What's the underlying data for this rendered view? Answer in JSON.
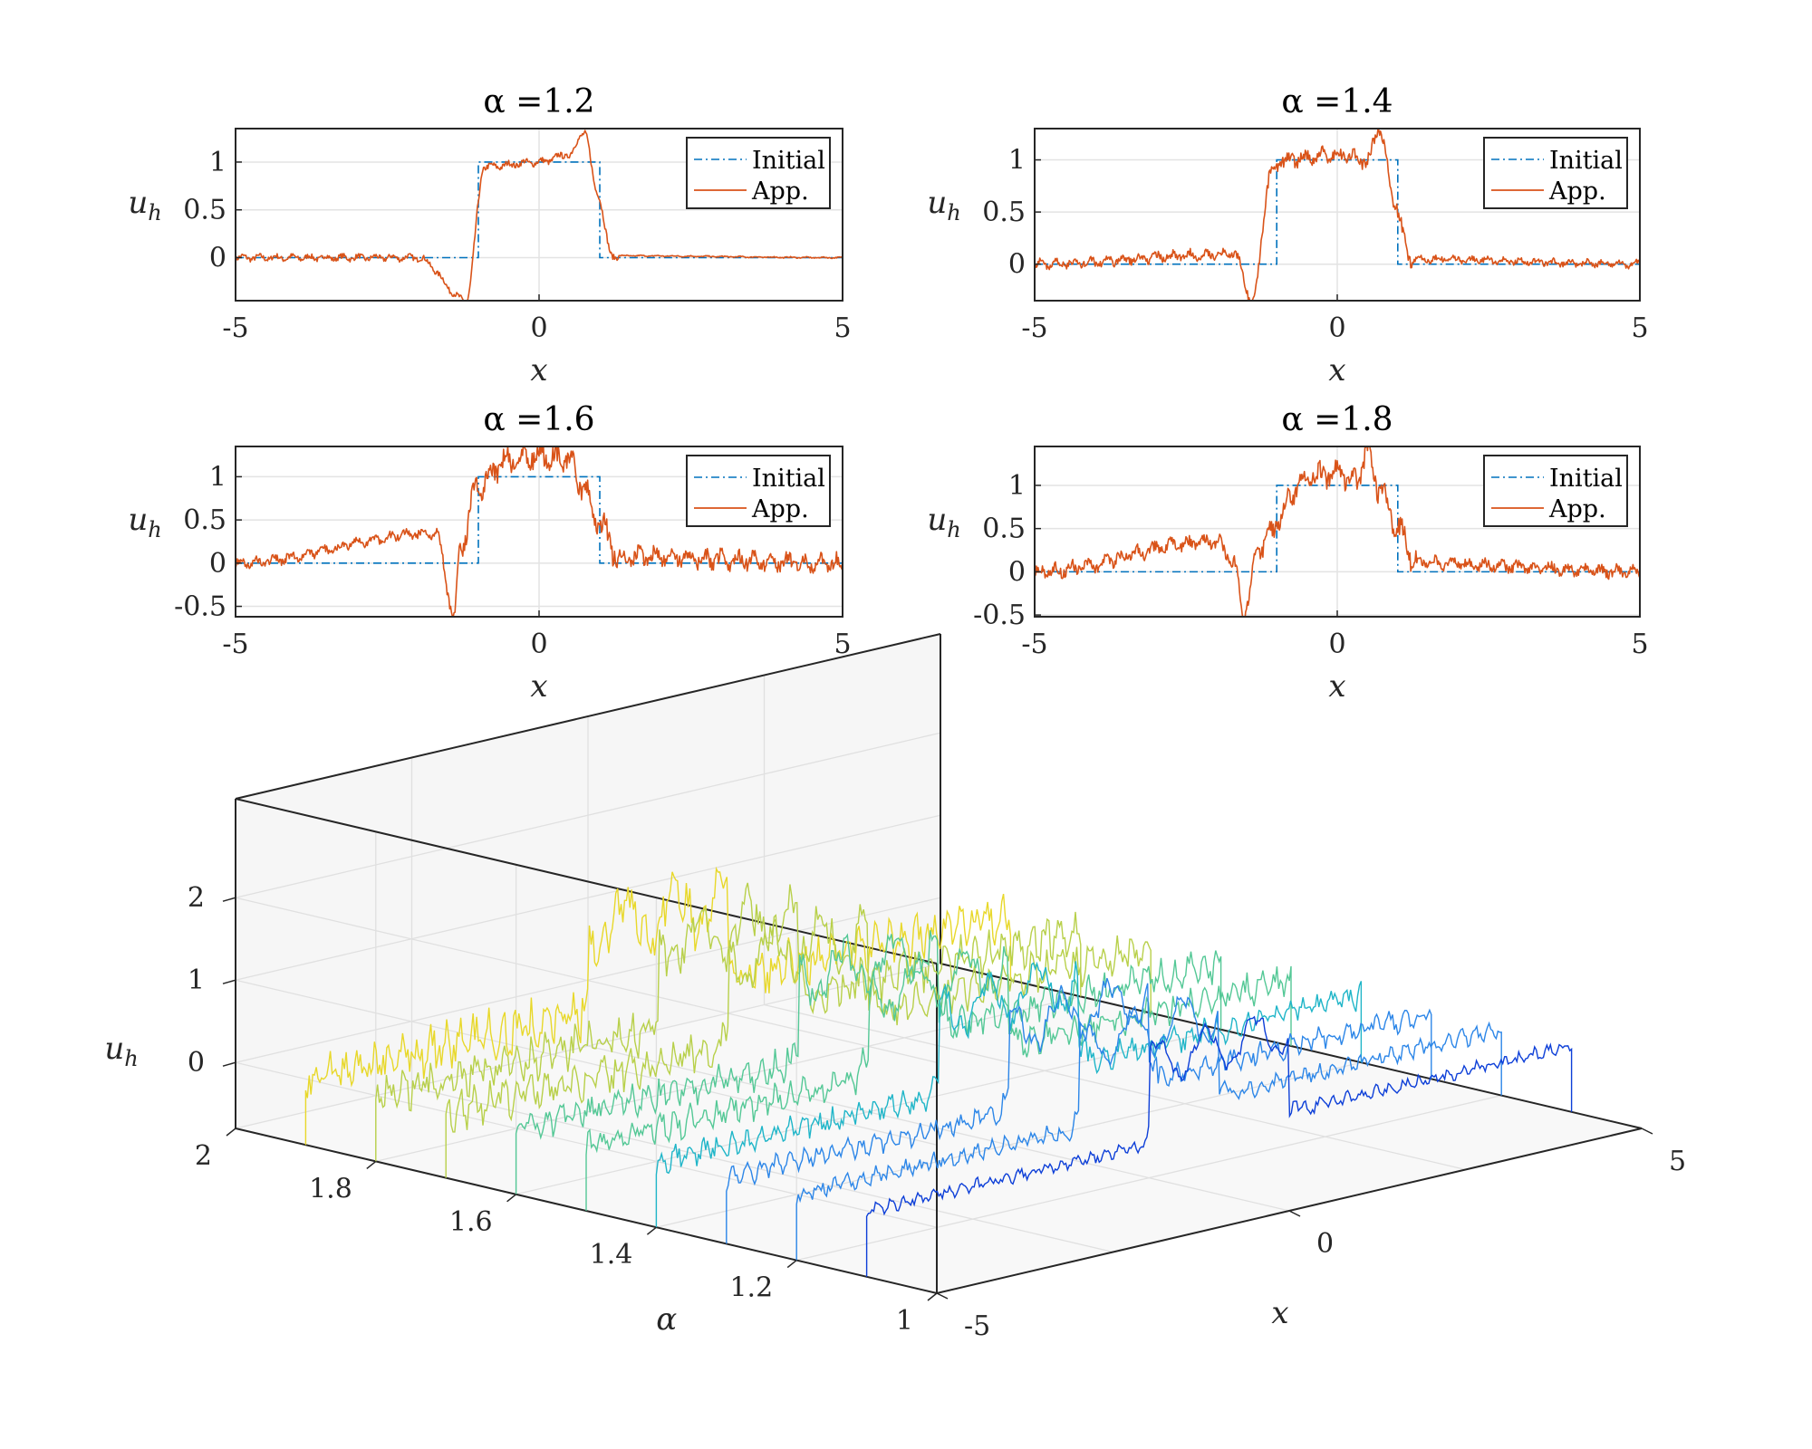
{
  "chart_data": [
    {
      "type": "line",
      "title": "α =1.2",
      "xlabel": "x",
      "ylabel": "u",
      "ylabel_sub": "h",
      "alpha": 1.2,
      "xlim": [
        -5,
        5
      ],
      "ylim": [
        -0.45,
        1.35
      ],
      "xticks": [
        "-5",
        "0",
        "5"
      ],
      "yticks": [
        "0",
        "0.5",
        "1"
      ],
      "ytick_values": [
        0,
        0.5,
        1
      ],
      "grid": true,
      "legend": {
        "placement": "top-right",
        "entries": [
          "Initial",
          "App."
        ]
      },
      "series": [
        {
          "name": "Initial",
          "style": "dash-dot",
          "x": [
            -5,
            -1,
            -1,
            1,
            1,
            5
          ],
          "y": [
            0,
            0,
            1,
            1,
            0,
            0
          ]
        },
        {
          "name": "App.",
          "style": "solid",
          "noise_left": 0.03,
          "noise_right": 0.006,
          "key_points": {
            "x": [
              -5,
              -3.5,
              -2.0,
              -1.2,
              -0.9,
              0,
              0.5,
              0.75,
              0.95,
              1.2,
              5
            ],
            "y": [
              0,
              0,
              0,
              -0.45,
              0.95,
              1.0,
              1.08,
              1.32,
              0.7,
              0.02,
              0
            ]
          }
        }
      ]
    },
    {
      "type": "line",
      "title": "α =1.4",
      "xlabel": "x",
      "ylabel": "u",
      "ylabel_sub": "h",
      "alpha": 1.4,
      "xlim": [
        -5,
        5
      ],
      "ylim": [
        -0.35,
        1.3
      ],
      "xticks": [
        "-5",
        "0",
        "5"
      ],
      "yticks": [
        "0",
        "0.5",
        "1"
      ],
      "ytick_values": [
        0,
        0.5,
        1
      ],
      "grid": true,
      "legend": {
        "placement": "top-right",
        "entries": [
          "Initial",
          "App."
        ]
      },
      "series": [
        {
          "name": "Initial",
          "style": "dash-dot",
          "x": [
            -5,
            -1,
            -1,
            1,
            1,
            5
          ],
          "y": [
            0,
            0,
            1,
            1,
            0,
            0
          ]
        },
        {
          "name": "App.",
          "style": "solid",
          "noise_left": 0.04,
          "noise_right": 0.03,
          "key_points": {
            "x": [
              -5,
              -1.7,
              -1.4,
              -1.1,
              -0.9,
              0,
              0.5,
              0.7,
              0.95,
              1.2,
              5
            ],
            "y": [
              0,
              0.1,
              -0.35,
              0.85,
              1.0,
              1.05,
              1.0,
              1.3,
              0.6,
              0.05,
              0
            ]
          }
        }
      ]
    },
    {
      "type": "line",
      "title": "α =1.6",
      "xlabel": "x",
      "ylabel": "u",
      "ylabel_sub": "h",
      "alpha": 1.6,
      "xlim": [
        -5,
        5
      ],
      "ylim": [
        -0.62,
        1.35
      ],
      "xticks": [
        "-5",
        "0",
        "5"
      ],
      "yticks": [
        "-0.5",
        "0",
        "0.5",
        "1"
      ],
      "ytick_values": [
        -0.5,
        0,
        0.5,
        1
      ],
      "grid": true,
      "legend": {
        "placement": "top-right",
        "entries": [
          "Initial",
          "App."
        ]
      },
      "series": [
        {
          "name": "Initial",
          "style": "dash-dot",
          "x": [
            -5,
            -1,
            -1,
            1,
            1,
            5
          ],
          "y": [
            0,
            0,
            1,
            1,
            0,
            0
          ]
        },
        {
          "name": "App.",
          "style": "solid",
          "noise_left": 0.05,
          "noise_right": 0.09,
          "key_points": {
            "x": [
              -5,
              -1.7,
              -1.4,
              -1.3,
              -1.0,
              -0.5,
              0,
              0.5,
              0.7,
              1.0,
              1.3,
              5
            ],
            "y": [
              0,
              0.35,
              -0.6,
              0.2,
              0.9,
              1.2,
              1.25,
              1.2,
              0.9,
              0.45,
              0.08,
              0
            ]
          }
        }
      ]
    },
    {
      "type": "line",
      "title": "α =1.8",
      "xlabel": "x",
      "ylabel": "u",
      "ylabel_sub": "h",
      "alpha": 1.8,
      "xlim": [
        -5,
        5
      ],
      "ylim": [
        -0.52,
        1.45
      ],
      "xticks": [
        "-5",
        "0",
        "5"
      ],
      "yticks": [
        "-0.5",
        "0",
        "0.5",
        "1"
      ],
      "ytick_values": [
        -0.5,
        0,
        0.5,
        1
      ],
      "grid": true,
      "legend": {
        "placement": "top-right",
        "entries": [
          "Initial",
          "App."
        ]
      },
      "series": [
        {
          "name": "Initial",
          "style": "dash-dot",
          "x": [
            -5,
            -1,
            -1,
            1,
            1,
            5
          ],
          "y": [
            0,
            0,
            1,
            1,
            0,
            0
          ]
        },
        {
          "name": "App.",
          "style": "solid",
          "noise_left": 0.07,
          "noise_right": 0.06,
          "key_points": {
            "x": [
              -5,
              -2.0,
              -1.7,
              -1.55,
              -1.3,
              -0.5,
              0,
              0.3,
              0.5,
              0.7,
              1.0,
              1.3,
              5
            ],
            "y": [
              0,
              0.35,
              0.1,
              -0.5,
              0.3,
              1.1,
              1.15,
              1.05,
              1.4,
              0.95,
              0.5,
              0.1,
              0
            ]
          }
        }
      ]
    },
    {
      "type": "line",
      "subtype": "3d-waterfall",
      "xlabel": "x",
      "ylabel": "α",
      "zlabel": "u",
      "zlabel_sub": "h",
      "xlim": [
        -5,
        5
      ],
      "ylim": [
        1,
        2
      ],
      "zlim": [
        -0.8,
        2
      ],
      "xticks": [
        "-5",
        "0",
        "5"
      ],
      "xtick_values": [
        -5,
        0,
        5
      ],
      "yticks": [
        "1",
        "1.2",
        "1.4",
        "1.6",
        "1.8",
        "2"
      ],
      "ytick_values": [
        1,
        1.2,
        1.4,
        1.6,
        1.8,
        2
      ],
      "zticks": [
        "0",
        "1",
        "2"
      ],
      "ztick_values": [
        0,
        1,
        2
      ],
      "grid": true,
      "colormap": [
        "#0d3fd8",
        "#2c86e8",
        "#1fb5c8",
        "#54c896",
        "#b8d04a",
        "#e8d82a"
      ],
      "series_alpha": [
        1.1,
        1.2,
        1.3,
        1.4,
        1.5,
        1.6,
        1.7,
        1.8,
        1.9
      ]
    }
  ]
}
